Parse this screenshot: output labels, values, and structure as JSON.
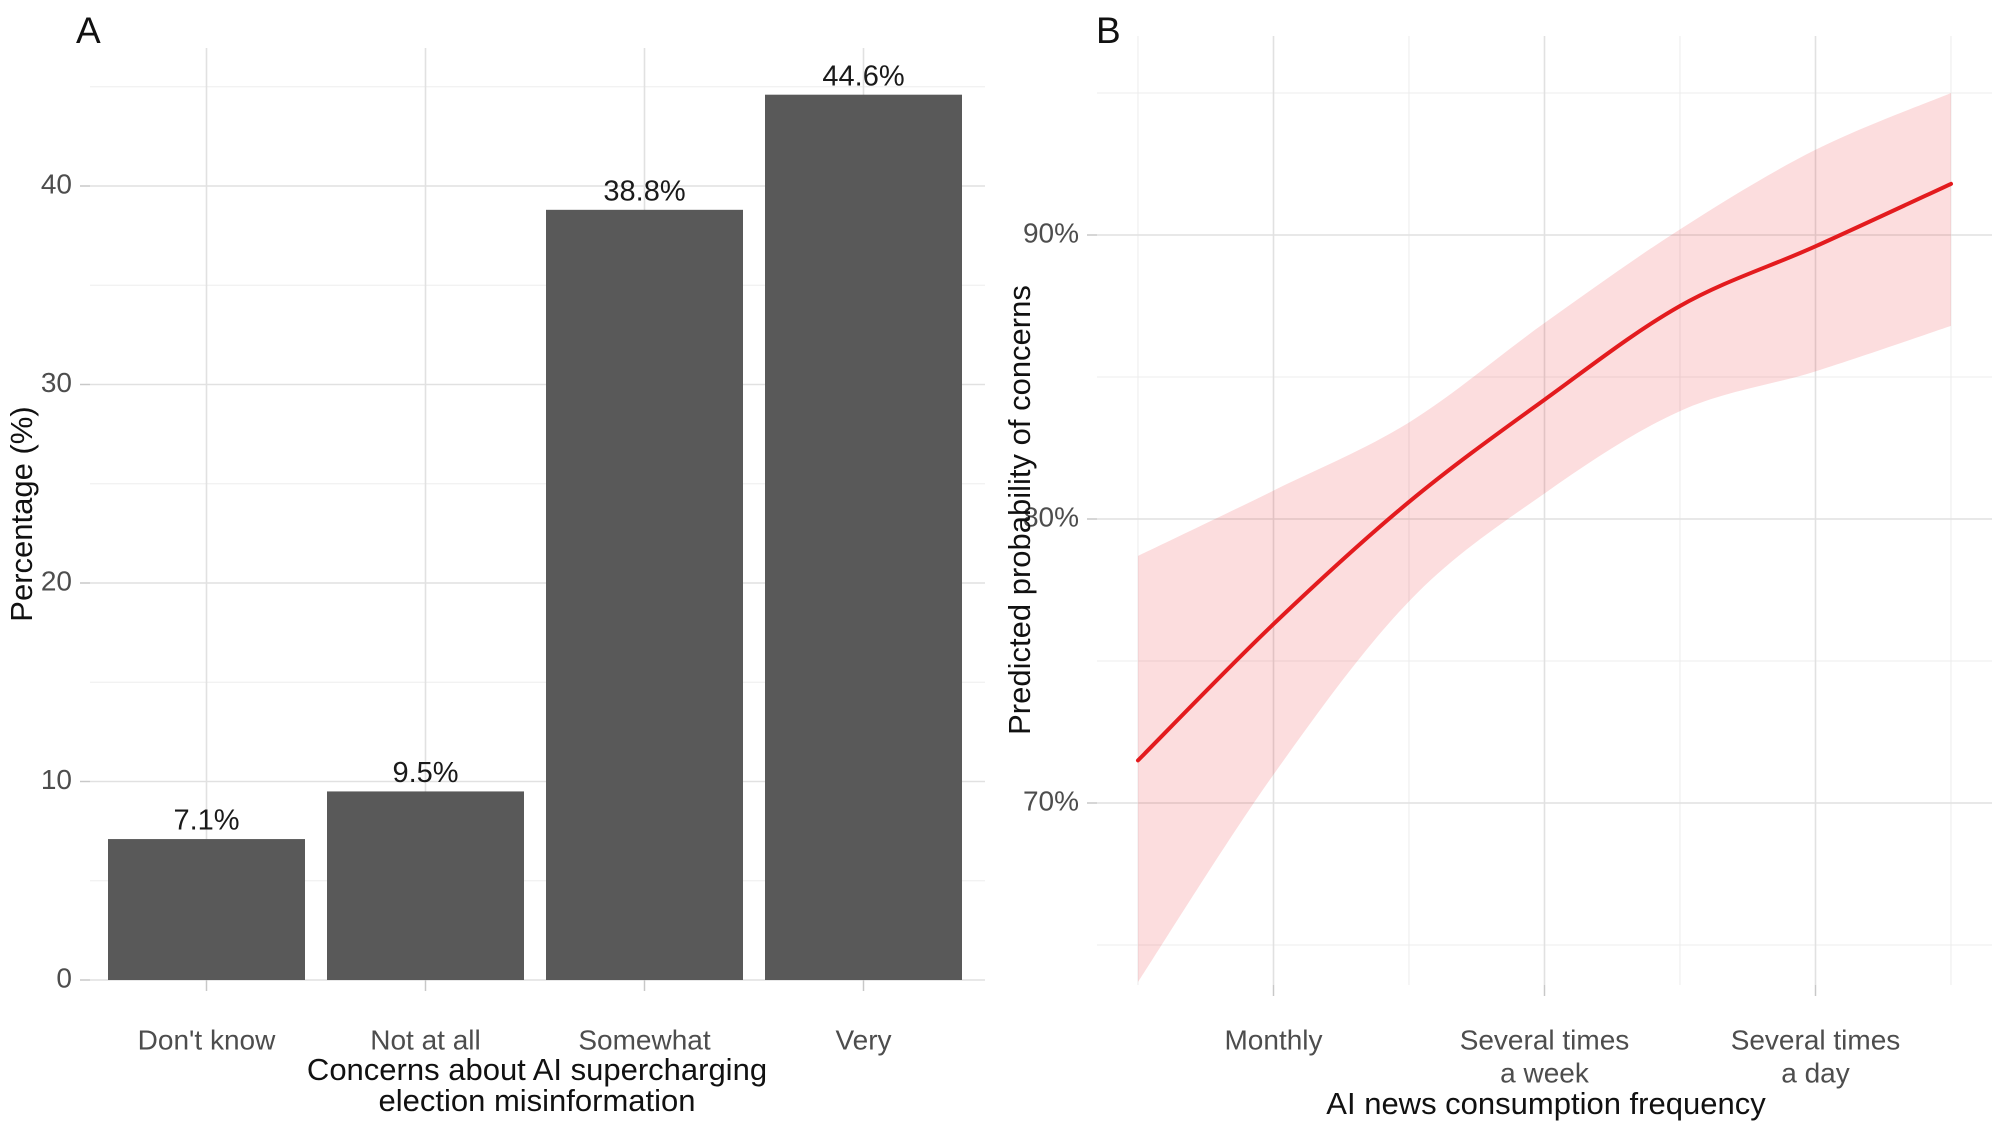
{
  "colors": {
    "background": "#ffffff",
    "grid_major": "#e1e1e1",
    "grid_minor": "#ededed",
    "tick_mark": "#c8c8c8",
    "tick_label": "#4d4d4d",
    "axis_title": "#111111",
    "bar_fill": "#595959",
    "line_red": "#e31b1e",
    "ribbon_pink": "rgba(237,28,36,0.15)",
    "value_label": "#1a1a1a"
  },
  "chart_data": [
    {
      "panel": "A",
      "type": "bar",
      "title_tag": "A",
      "categories": [
        "Don't know",
        "Not at all",
        "Somewhat",
        "Very"
      ],
      "values": [
        7.1,
        9.5,
        38.8,
        44.6
      ],
      "value_labels": [
        "7.1%",
        "9.5%",
        "38.8%",
        "44.6%"
      ],
      "xlabel_lines": [
        "Concerns about AI supercharging",
        "election misinformation"
      ],
      "ylabel": "Percentage (%)",
      "y_major_ticks": [
        0,
        10,
        20,
        30,
        40
      ],
      "y_major_tick_labels": [
        "0",
        "10",
        "20",
        "30",
        "40"
      ],
      "y_minor_ticks": [
        5,
        15,
        25,
        35,
        45
      ],
      "ylim": [
        0,
        47
      ],
      "grid": "light gray majors and minors, white panel"
    },
    {
      "panel": "B",
      "type": "line",
      "title_tag": "B",
      "x": [
        1,
        2,
        3,
        4,
        5,
        6,
        7
      ],
      "predicted": [
        71.5,
        76.3,
        80.6,
        84.2,
        87.5,
        89.6,
        91.8
      ],
      "ci_lower": [
        63.7,
        71.0,
        77.1,
        80.9,
        83.8,
        85.2,
        86.8
      ],
      "ci_upper": [
        78.7,
        81.0,
        83.4,
        86.9,
        90.2,
        93.0,
        95.0
      ],
      "x_major_ticks": [
        {
          "pos": 2,
          "lines": [
            "Monthly"
          ]
        },
        {
          "pos": 4,
          "lines": [
            "Several times",
            "a week"
          ]
        },
        {
          "pos": 6,
          "lines": [
            "Several times",
            "a day"
          ]
        }
      ],
      "x_minor_ticks": [
        1,
        3,
        5,
        7
      ],
      "y_major_ticks": [
        {
          "value": 70,
          "label": "70%"
        },
        {
          "value": 80,
          "label": "80%"
        },
        {
          "value": 90,
          "label": "90%"
        }
      ],
      "y_minor_ticks": [
        65,
        75,
        85,
        95
      ],
      "ylim": [
        63.5,
        97.0
      ],
      "xlim": [
        0.7,
        7.3
      ],
      "xlabel": "AI news consumption frequency",
      "ylabel": "Predicted probability of concerns",
      "legend": "none"
    }
  ]
}
